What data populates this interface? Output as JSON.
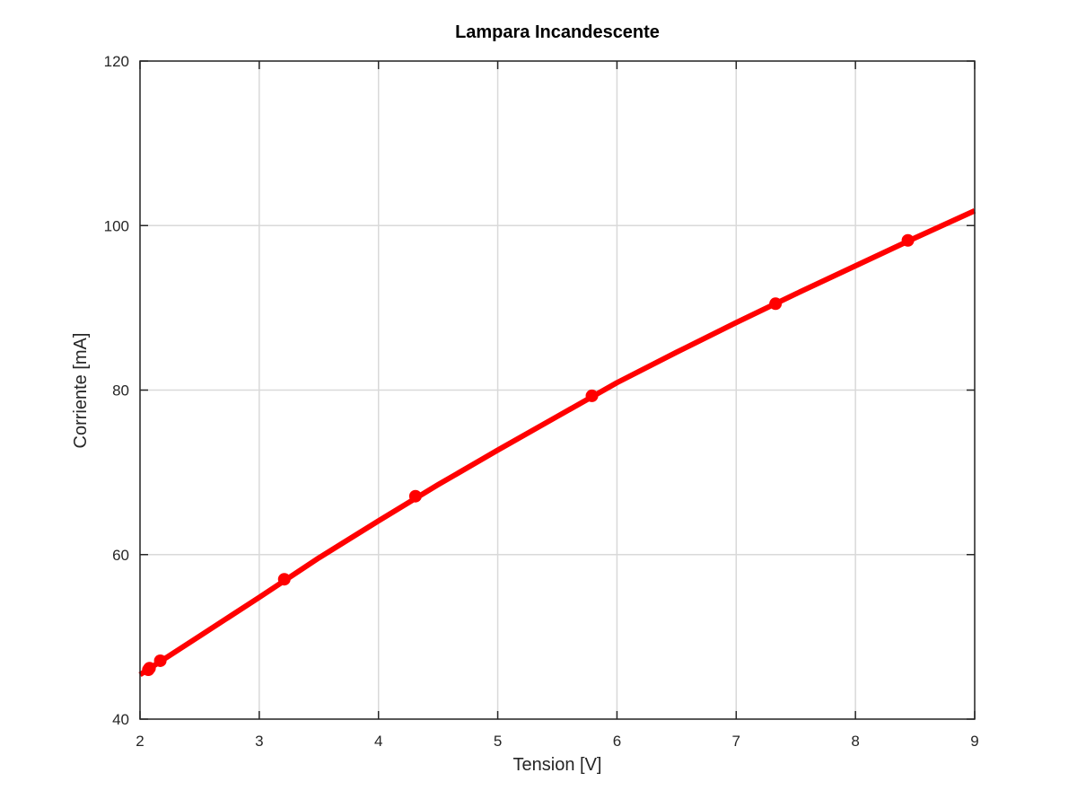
{
  "chart_data": {
    "type": "line",
    "title": "Lampara Incandescente",
    "xlabel": "Tension [V]",
    "ylabel": "Corriente [mA]",
    "xlim": [
      2,
      9
    ],
    "ylim": [
      40,
      120
    ],
    "xticks": [
      2,
      3,
      4,
      5,
      6,
      7,
      8,
      9
    ],
    "yticks": [
      40,
      60,
      80,
      100,
      120
    ],
    "grid": true,
    "series": [
      {
        "color": "#ff0000",
        "style": "line",
        "x": [
          2.0,
          2.5,
          3.0,
          3.5,
          4.0,
          4.5,
          5.0,
          5.5,
          6.0,
          6.5,
          7.0,
          7.5,
          8.0,
          8.5,
          9.0
        ],
        "y": [
          45.4,
          50.1,
          54.8,
          59.6,
          64.1,
          68.5,
          72.7,
          76.8,
          80.9,
          84.6,
          88.2,
          91.7,
          95.1,
          98.5,
          101.8
        ]
      },
      {
        "color": "#ff0000",
        "style": "markers",
        "x": [
          2.07,
          2.08,
          2.17,
          3.21,
          4.31,
          5.79,
          7.33,
          8.44
        ],
        "y": [
          46.0,
          46.2,
          47.1,
          57.0,
          67.1,
          79.3,
          90.5,
          98.2
        ]
      }
    ]
  }
}
